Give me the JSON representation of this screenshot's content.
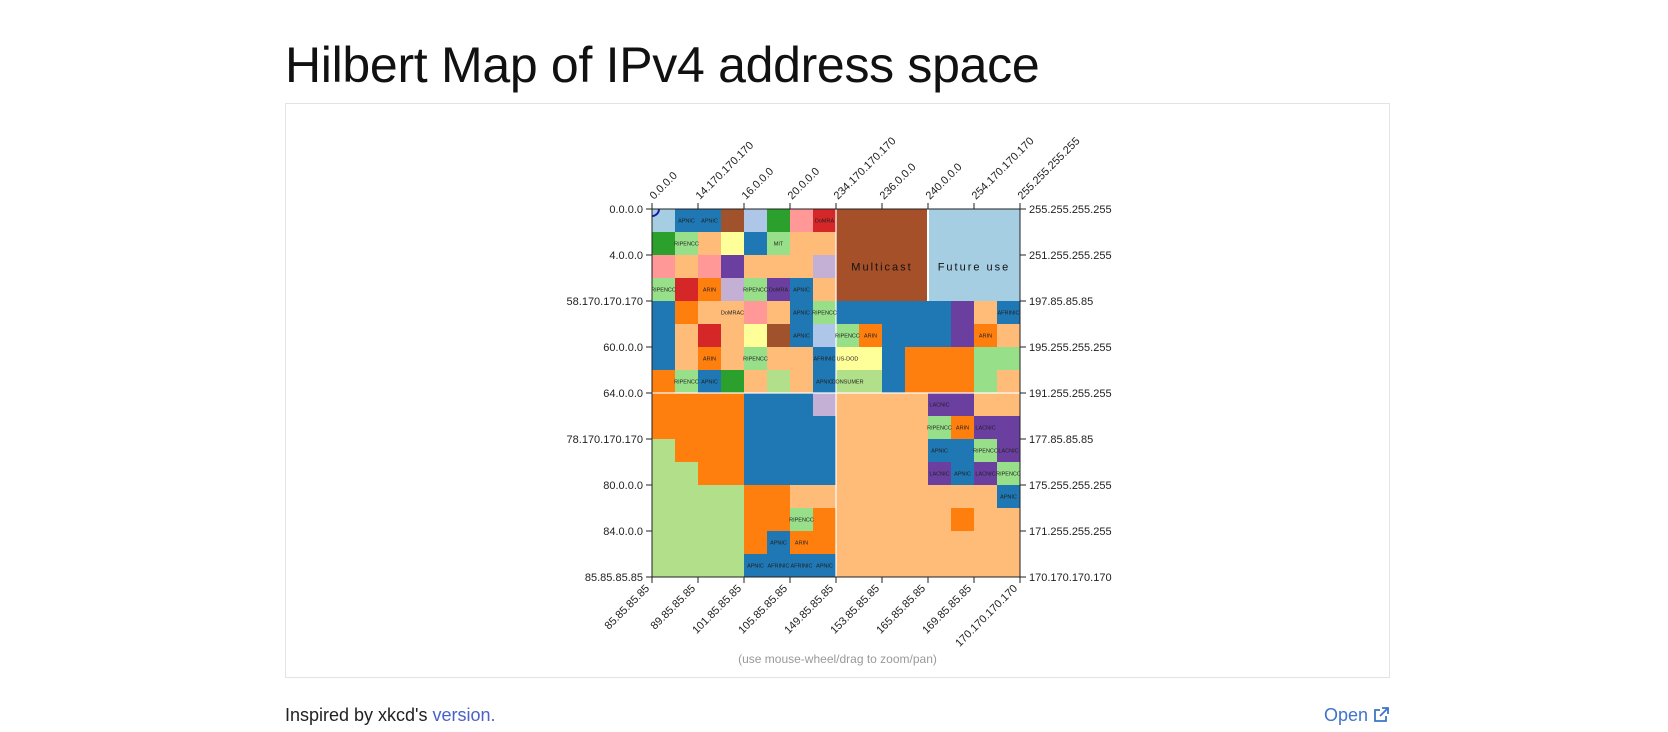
{
  "page": {
    "title": "Hilbert Map of IPv4 address space",
    "hint": "(use mouse-wheel/drag to zoom/pan)",
    "footer_prefix": "Inspired by xkcd's ",
    "footer_link": "version.",
    "open_label": "Open"
  },
  "chart_data": {
    "type": "heatmap",
    "title": "",
    "grid": 16,
    "axes": {
      "top": [
        "0.0.0.0",
        "14.170.170.170",
        "16.0.0.0",
        "20.0.0.0",
        "234.170.170.170",
        "236.0.0.0",
        "240.0.0.0",
        "254.170.170.170",
        "255.255.255.255"
      ],
      "left": [
        "0.0.0.0",
        "4.0.0.0",
        "58.170.170.170",
        "60.0.0.0",
        "64.0.0.0",
        "78.170.170.170",
        "80.0.0.0",
        "84.0.0.0",
        "85.85.85.85"
      ],
      "right": [
        "255.255.255.255",
        "251.255.255.255",
        "197.85.85.85",
        "195.255.255.255",
        "191.255.255.255",
        "177.85.85.85",
        "175.255.255.255",
        "171.255.255.255",
        "170.170.170.170"
      ],
      "bottom": [
        "85.85.85.85",
        "89.85.85.85",
        "101.85.85.85",
        "105.85.85.85",
        "149.85.85.85",
        "153.85.85.85",
        "165.85.85.85",
        "169.85.85.85",
        "170.170.170.170"
      ]
    },
    "colors": {
      "APNIC": "#1f77b4",
      "RIPENCC": "#aec7e8",
      "ARIN": "#ff7f0e",
      "ARIN_LIGHT": "#ffbb78",
      "LACNIC": "#2ca02c",
      "LACNIC_PURPLE": "#6b3fa0",
      "AFRINIC": "#98df8a",
      "RED": "#d62728",
      "PINK": "#ff9896",
      "BROWN": "#a0522d",
      "LAVENDER": "#c5b0d5",
      "YELLOW": "#ffff99",
      "GREEN_LIGHT": "#b2df8a",
      "multicast": "#a6502a",
      "future": "#a6cee3"
    },
    "cells": [
      [
        "future",
        "APNIC",
        "APNIC",
        "BROWN",
        "RIPENCC",
        "LACNIC",
        "PINK",
        "RED",
        "multicast",
        "multicast",
        "multicast",
        "multicast",
        "future",
        "future",
        "future",
        "future"
      ],
      [
        "LACNIC",
        "AFRINIC",
        "ARIN_LIGHT",
        "YELLOW",
        "APNIC",
        "AFRINIC",
        "ARIN_LIGHT",
        "ARIN_LIGHT",
        "multicast",
        "multicast",
        "multicast",
        "multicast",
        "future",
        "future",
        "future",
        "future"
      ],
      [
        "PINK",
        "ARIN_LIGHT",
        "PINK",
        "LACNIC_PURPLE",
        "ARIN_LIGHT",
        "ARIN_LIGHT",
        "ARIN_LIGHT",
        "LAVENDER",
        "multicast",
        "multicast",
        "multicast",
        "multicast",
        "future",
        "future",
        "future",
        "future"
      ],
      [
        "AFRINIC",
        "RED",
        "ARIN",
        "LAVENDER",
        "AFRINIC",
        "LACNIC_PURPLE",
        "APNIC",
        "ARIN_LIGHT",
        "multicast",
        "multicast",
        "multicast",
        "multicast",
        "future",
        "future",
        "future",
        "future"
      ],
      [
        "APNIC",
        "ARIN",
        "ARIN_LIGHT",
        "ARIN_LIGHT",
        "PINK",
        "ARIN_LIGHT",
        "APNIC",
        "AFRINIC",
        "APNIC",
        "APNIC",
        "APNIC",
        "APNIC",
        "APNIC",
        "LACNIC_PURPLE",
        "ARIN_LIGHT",
        "APNIC"
      ],
      [
        "APNIC",
        "ARIN_LIGHT",
        "RED",
        "ARIN_LIGHT",
        "YELLOW",
        "BROWN",
        "APNIC",
        "RIPENCC",
        "AFRINIC",
        "ARIN",
        "APNIC",
        "APNIC",
        "APNIC",
        "LACNIC_PURPLE",
        "ARIN",
        "ARIN_LIGHT"
      ],
      [
        "APNIC",
        "ARIN_LIGHT",
        "ARIN",
        "ARIN_LIGHT",
        "AFRINIC",
        "ARIN_LIGHT",
        "ARIN_LIGHT",
        "APNIC",
        "YELLOW",
        "YELLOW",
        "APNIC",
        "ARIN",
        "ARIN",
        "ARIN",
        "AFRINIC",
        "AFRINIC"
      ],
      [
        "ARIN",
        "AFRINIC",
        "APNIC",
        "LACNIC",
        "ARIN_LIGHT",
        "GREEN_LIGHT",
        "ARIN_LIGHT",
        "APNIC",
        "GREEN_LIGHT",
        "GREEN_LIGHT",
        "APNIC",
        "ARIN",
        "ARIN",
        "ARIN",
        "AFRINIC",
        "ARIN_LIGHT"
      ],
      [
        "ARIN",
        "ARIN",
        "ARIN",
        "ARIN",
        "APNIC",
        "APNIC",
        "APNIC",
        "LAVENDER",
        "ARIN_LIGHT",
        "ARIN_LIGHT",
        "ARIN_LIGHT",
        "ARIN_LIGHT",
        "LACNIC_PURPLE",
        "LACNIC_PURPLE",
        "ARIN_LIGHT",
        "ARIN_LIGHT"
      ],
      [
        "ARIN",
        "ARIN",
        "ARIN",
        "ARIN",
        "APNIC",
        "APNIC",
        "APNIC",
        "APNIC",
        "ARIN_LIGHT",
        "ARIN_LIGHT",
        "ARIN_LIGHT",
        "ARIN_LIGHT",
        "AFRINIC",
        "ARIN",
        "LACNIC_PURPLE",
        "LACNIC_PURPLE"
      ],
      [
        "GREEN_LIGHT",
        "ARIN",
        "ARIN",
        "ARIN",
        "APNIC",
        "APNIC",
        "APNIC",
        "APNIC",
        "ARIN_LIGHT",
        "ARIN_LIGHT",
        "ARIN_LIGHT",
        "ARIN_LIGHT",
        "APNIC",
        "APNIC",
        "AFRINIC",
        "LACNIC_PURPLE"
      ],
      [
        "GREEN_LIGHT",
        "GREEN_LIGHT",
        "ARIN",
        "ARIN",
        "APNIC",
        "APNIC",
        "APNIC",
        "APNIC",
        "ARIN_LIGHT",
        "ARIN_LIGHT",
        "ARIN_LIGHT",
        "ARIN_LIGHT",
        "LACNIC_PURPLE",
        "APNIC",
        "LACNIC_PURPLE",
        "AFRINIC"
      ],
      [
        "GREEN_LIGHT",
        "GREEN_LIGHT",
        "GREEN_LIGHT",
        "GREEN_LIGHT",
        "ARIN",
        "ARIN",
        "ARIN_LIGHT",
        "ARIN_LIGHT",
        "ARIN_LIGHT",
        "ARIN_LIGHT",
        "ARIN_LIGHT",
        "ARIN_LIGHT",
        "ARIN_LIGHT",
        "ARIN_LIGHT",
        "ARIN_LIGHT",
        "APNIC"
      ],
      [
        "GREEN_LIGHT",
        "GREEN_LIGHT",
        "GREEN_LIGHT",
        "GREEN_LIGHT",
        "ARIN",
        "ARIN",
        "AFRINIC",
        "ARIN",
        "ARIN_LIGHT",
        "ARIN_LIGHT",
        "ARIN_LIGHT",
        "ARIN_LIGHT",
        "ARIN_LIGHT",
        "ARIN",
        "ARIN_LIGHT",
        "ARIN_LIGHT"
      ],
      [
        "GREEN_LIGHT",
        "GREEN_LIGHT",
        "GREEN_LIGHT",
        "GREEN_LIGHT",
        "ARIN",
        "APNIC",
        "ARIN",
        "ARIN",
        "ARIN_LIGHT",
        "ARIN_LIGHT",
        "ARIN_LIGHT",
        "ARIN_LIGHT",
        "ARIN_LIGHT",
        "ARIN_LIGHT",
        "ARIN_LIGHT",
        "ARIN_LIGHT"
      ],
      [
        "GREEN_LIGHT",
        "GREEN_LIGHT",
        "GREEN_LIGHT",
        "GREEN_LIGHT",
        "APNIC",
        "APNIC",
        "APNIC",
        "APNIC",
        "ARIN_LIGHT",
        "ARIN_LIGHT",
        "ARIN_LIGHT",
        "ARIN_LIGHT",
        "ARIN_LIGHT",
        "ARIN_LIGHT",
        "ARIN_LIGHT",
        "ARIN_LIGHT"
      ]
    ],
    "big_labels": [
      {
        "text": "Multicast",
        "row": 2,
        "col": 8,
        "span": 4
      },
      {
        "text": "Future use",
        "row": 2,
        "col": 12,
        "span": 4
      }
    ],
    "cell_labels": [
      {
        "text": "APNIC",
        "row": 0,
        "col": 1
      },
      {
        "text": "APNIC",
        "row": 0,
        "col": 2
      },
      {
        "text": "DoMRA",
        "row": 0,
        "col": 7
      },
      {
        "text": "RIPENCC",
        "row": 1,
        "col": 1
      },
      {
        "text": "MIT",
        "row": 1,
        "col": 5
      },
      {
        "text": "RIPENCC",
        "row": 3,
        "col": 0
      },
      {
        "text": "ARIN",
        "row": 3,
        "col": 2
      },
      {
        "text": "RIPENCC",
        "row": 3,
        "col": 4
      },
      {
        "text": "DoMRA",
        "row": 3,
        "col": 5
      },
      {
        "text": "APNIC",
        "row": 3,
        "col": 6
      },
      {
        "text": "DoMRAC",
        "row": 4,
        "col": 3
      },
      {
        "text": "APNIC",
        "row": 4,
        "col": 6
      },
      {
        "text": "RIPENCC",
        "row": 4,
        "col": 7
      },
      {
        "text": "AFRINIC",
        "row": 4,
        "col": 15
      },
      {
        "text": "APNIC",
        "row": 5,
        "col": 6
      },
      {
        "text": "RIPENCC",
        "row": 5,
        "col": 8
      },
      {
        "text": "ARIN",
        "row": 5,
        "col": 9
      },
      {
        "text": "ARIN",
        "row": 5,
        "col": 14
      },
      {
        "text": "ARIN",
        "row": 6,
        "col": 2
      },
      {
        "text": "RIPENCC",
        "row": 6,
        "col": 4
      },
      {
        "text": "AFRINIC",
        "row": 6,
        "col": 7
      },
      {
        "text": "US-DOD",
        "row": 6,
        "col": 8
      },
      {
        "text": "RIPENCC",
        "row": 7,
        "col": 1
      },
      {
        "text": "APNIC",
        "row": 7,
        "col": 2
      },
      {
        "text": "APNIC",
        "row": 7,
        "col": 7
      },
      {
        "text": "CONSUMER",
        "row": 7,
        "col": 8
      },
      {
        "text": "LACNIC",
        "row": 8,
        "col": 12
      },
      {
        "text": "RIPENCC",
        "row": 9,
        "col": 12
      },
      {
        "text": "ARIN",
        "row": 9,
        "col": 13
      },
      {
        "text": "LACNIC",
        "row": 9,
        "col": 14
      },
      {
        "text": "APNIC",
        "row": 10,
        "col": 12
      },
      {
        "text": "RIPENCC",
        "row": 10,
        "col": 14
      },
      {
        "text": "LACNIC",
        "row": 10,
        "col": 15
      },
      {
        "text": "LACNIC",
        "row": 11,
        "col": 12
      },
      {
        "text": "APNIC",
        "row": 11,
        "col": 13
      },
      {
        "text": "LACNIC",
        "row": 11,
        "col": 14
      },
      {
        "text": "RIPENCC",
        "row": 11,
        "col": 15
      },
      {
        "text": "APNIC",
        "row": 12,
        "col": 15
      },
      {
        "text": "RIPENCC",
        "row": 13,
        "col": 6
      },
      {
        "text": "APNIC",
        "row": 14,
        "col": 5
      },
      {
        "text": "ARIN",
        "row": 14,
        "col": 6
      },
      {
        "text": "APNIC",
        "row": 15,
        "col": 4
      },
      {
        "text": "AFRINIC",
        "row": 15,
        "col": 5
      },
      {
        "text": "AFRINIC",
        "row": 15,
        "col": 6
      },
      {
        "text": "APNIC",
        "row": 15,
        "col": 7
      }
    ]
  }
}
